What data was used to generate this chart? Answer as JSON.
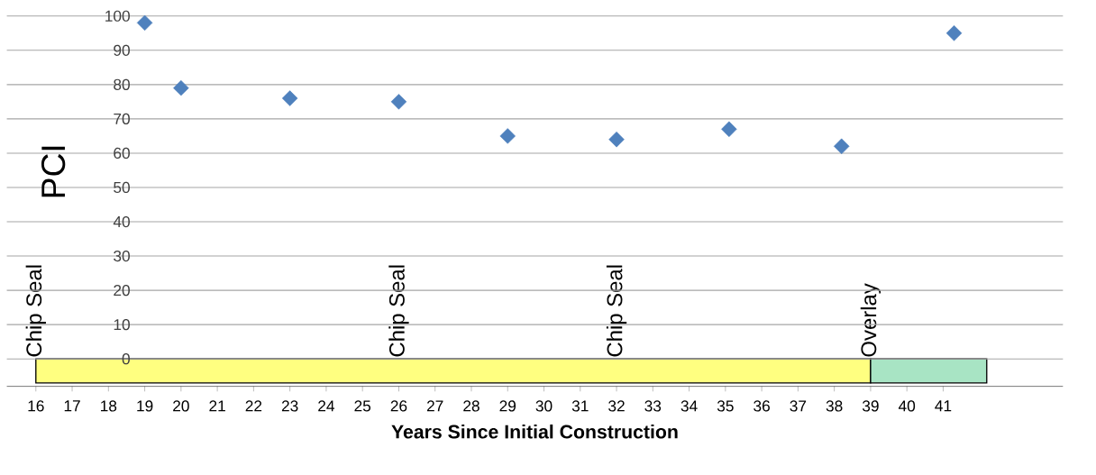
{
  "chart_data": {
    "type": "scatter",
    "xlabel": "Years Since Initial Construction",
    "ylabel": "PCI",
    "x": [
      19,
      20,
      23,
      26,
      29,
      32,
      35.1,
      38.2,
      41.3
    ],
    "series": [
      {
        "color": "#4f81bd",
        "values": [
          98,
          79,
          76,
          75,
          65,
          64,
          67,
          62,
          95
        ]
      }
    ],
    "xlim": [
      15.2,
      44.3
    ],
    "ylim": [
      -8,
      100
    ],
    "xticks": [
      16,
      17,
      18,
      19,
      20,
      21,
      22,
      23,
      24,
      25,
      26,
      27,
      28,
      29,
      30,
      31,
      32,
      33,
      34,
      35,
      36,
      37,
      38,
      39,
      40,
      41
    ],
    "yticks": [
      0,
      10,
      20,
      30,
      40,
      50,
      60,
      70,
      80,
      90,
      100
    ],
    "grid": "y",
    "marker": "diamond",
    "bands": [
      {
        "axis": "x",
        "from": 16,
        "to": 39,
        "color": "#ffff80"
      },
      {
        "axis": "x",
        "from": 39,
        "to": 42.2,
        "color": "#a8e4c4"
      }
    ],
    "annotations": [
      {
        "text": "Chip Seal",
        "x": 16,
        "y": 0
      },
      {
        "text": "Chip Seal",
        "x": 26,
        "y": 0
      },
      {
        "text": "Chip Seal",
        "x": 32,
        "y": 0
      },
      {
        "text": "Overlay",
        "x": 39,
        "y": 0
      }
    ]
  }
}
